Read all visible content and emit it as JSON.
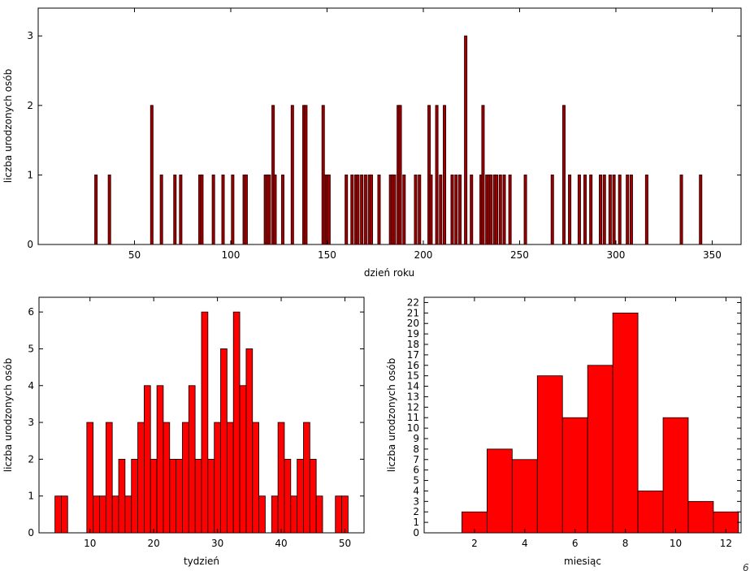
{
  "colors": {
    "day_bars": "#a00000",
    "hist_bars": "#ff0000"
  },
  "page_mark": "6",
  "chart_data": [
    {
      "type": "bar",
      "xlabel": "dzień roku",
      "ylabel": "liczba urodzonych osób",
      "xlim": [
        0,
        365
      ],
      "ylim": [
        0,
        3.4
      ],
      "xticks": [
        50,
        100,
        150,
        200,
        250,
        300,
        350
      ],
      "yticks": [
        0,
        1,
        2,
        3
      ],
      "x": [
        30,
        37,
        59,
        64,
        71,
        74,
        84,
        85,
        91,
        96,
        101,
        107,
        108,
        118,
        119,
        120,
        122,
        123,
        127,
        132,
        138,
        139,
        148,
        149,
        150,
        151,
        160,
        163,
        165,
        166,
        168,
        170,
        172,
        173,
        177,
        183,
        184,
        185,
        187,
        188,
        190,
        196,
        198,
        203,
        204,
        207,
        209,
        211,
        215,
        217,
        219,
        222,
        225,
        230,
        231,
        233,
        234,
        235,
        237,
        238,
        240,
        242,
        245,
        253,
        267,
        273,
        276,
        281,
        284,
        287,
        292,
        294,
        297,
        299,
        302,
        306,
        308,
        316,
        334,
        344
      ],
      "values": [
        1,
        1,
        2,
        1,
        1,
        1,
        1,
        1,
        1,
        1,
        1,
        1,
        1,
        1,
        1,
        1,
        2,
        1,
        1,
        2,
        2,
        2,
        2,
        1,
        1,
        1,
        1,
        1,
        1,
        1,
        1,
        1,
        1,
        1,
        1,
        1,
        1,
        1,
        2,
        2,
        1,
        1,
        1,
        2,
        1,
        2,
        1,
        2,
        1,
        1,
        1,
        3,
        1,
        1,
        2,
        1,
        1,
        1,
        1,
        1,
        1,
        1,
        1,
        1,
        1,
        2,
        1,
        1,
        1,
        1,
        1,
        1,
        1,
        1,
        1,
        1,
        1,
        1,
        1,
        1
      ]
    },
    {
      "type": "bar",
      "xlabel": "tydzień",
      "ylabel": "liczba urodzonych osób",
      "xlim": [
        2,
        53
      ],
      "ylim": [
        0,
        6.4
      ],
      "xticks": [
        10,
        20,
        30,
        40,
        50
      ],
      "yticks": [
        0,
        1,
        2,
        3,
        4,
        5,
        6
      ],
      "x": [
        5,
        6,
        10,
        11,
        12,
        13,
        14,
        15,
        16,
        17,
        18,
        19,
        20,
        21,
        22,
        23,
        24,
        25,
        26,
        27,
        28,
        29,
        30,
        31,
        32,
        33,
        34,
        35,
        36,
        37,
        39,
        40,
        41,
        42,
        43,
        44,
        45,
        46,
        49,
        50
      ],
      "values": [
        1,
        1,
        3,
        1,
        1,
        3,
        1,
        2,
        1,
        2,
        3,
        4,
        2,
        4,
        3,
        2,
        2,
        3,
        4,
        2,
        6,
        2,
        3,
        5,
        3,
        6,
        4,
        5,
        3,
        1,
        1,
        3,
        2,
        1,
        2,
        3,
        2,
        1,
        1,
        1
      ]
    },
    {
      "type": "bar",
      "xlabel": "miesiąc",
      "ylabel": "liczba urodzonych osób",
      "xlim": [
        0,
        12.6
      ],
      "ylim": [
        0,
        22.5
      ],
      "xticks": [
        2,
        4,
        6,
        8,
        10,
        12
      ],
      "yticks": [
        0,
        1,
        2,
        3,
        4,
        5,
        6,
        7,
        8,
        9,
        10,
        11,
        12,
        13,
        14,
        15,
        16,
        17,
        18,
        19,
        20,
        21,
        22
      ],
      "categories": [
        2,
        3,
        4,
        5,
        6,
        7,
        8,
        9,
        10,
        11,
        12
      ],
      "values": [
        2,
        8,
        7,
        15,
        11,
        16,
        21,
        4,
        11,
        3,
        2
      ]
    }
  ]
}
